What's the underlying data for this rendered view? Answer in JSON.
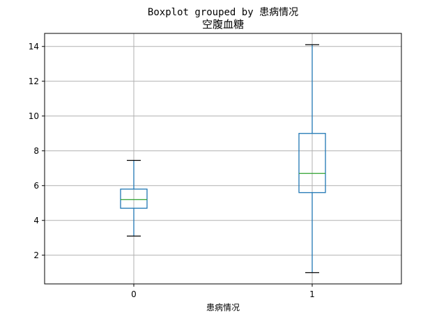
{
  "chart_data": {
    "type": "boxplot",
    "suptitle": "Boxplot grouped by 患病情况",
    "title": "空腹血糖",
    "xlabel": "患病情况",
    "ylabel": "",
    "categories": [
      "0",
      "1"
    ],
    "yticks": [
      "2",
      "4",
      "6",
      "8",
      "10",
      "12",
      "14"
    ],
    "ylim": [
      0.35,
      14.75
    ],
    "grid": true,
    "boxes": [
      {
        "category": "0",
        "whisker_low": 3.1,
        "q1": 4.7,
        "median": 5.2,
        "q3": 5.8,
        "whisker_high": 7.45
      },
      {
        "category": "1",
        "whisker_low": 1.0,
        "q1": 5.6,
        "median": 6.7,
        "q3": 9.0,
        "whisker_high": 14.1
      }
    ],
    "colors": {
      "box": "#1f77b4",
      "median": "#2ca02c",
      "cap": "#000000",
      "grid": "#b0b0b0"
    }
  }
}
